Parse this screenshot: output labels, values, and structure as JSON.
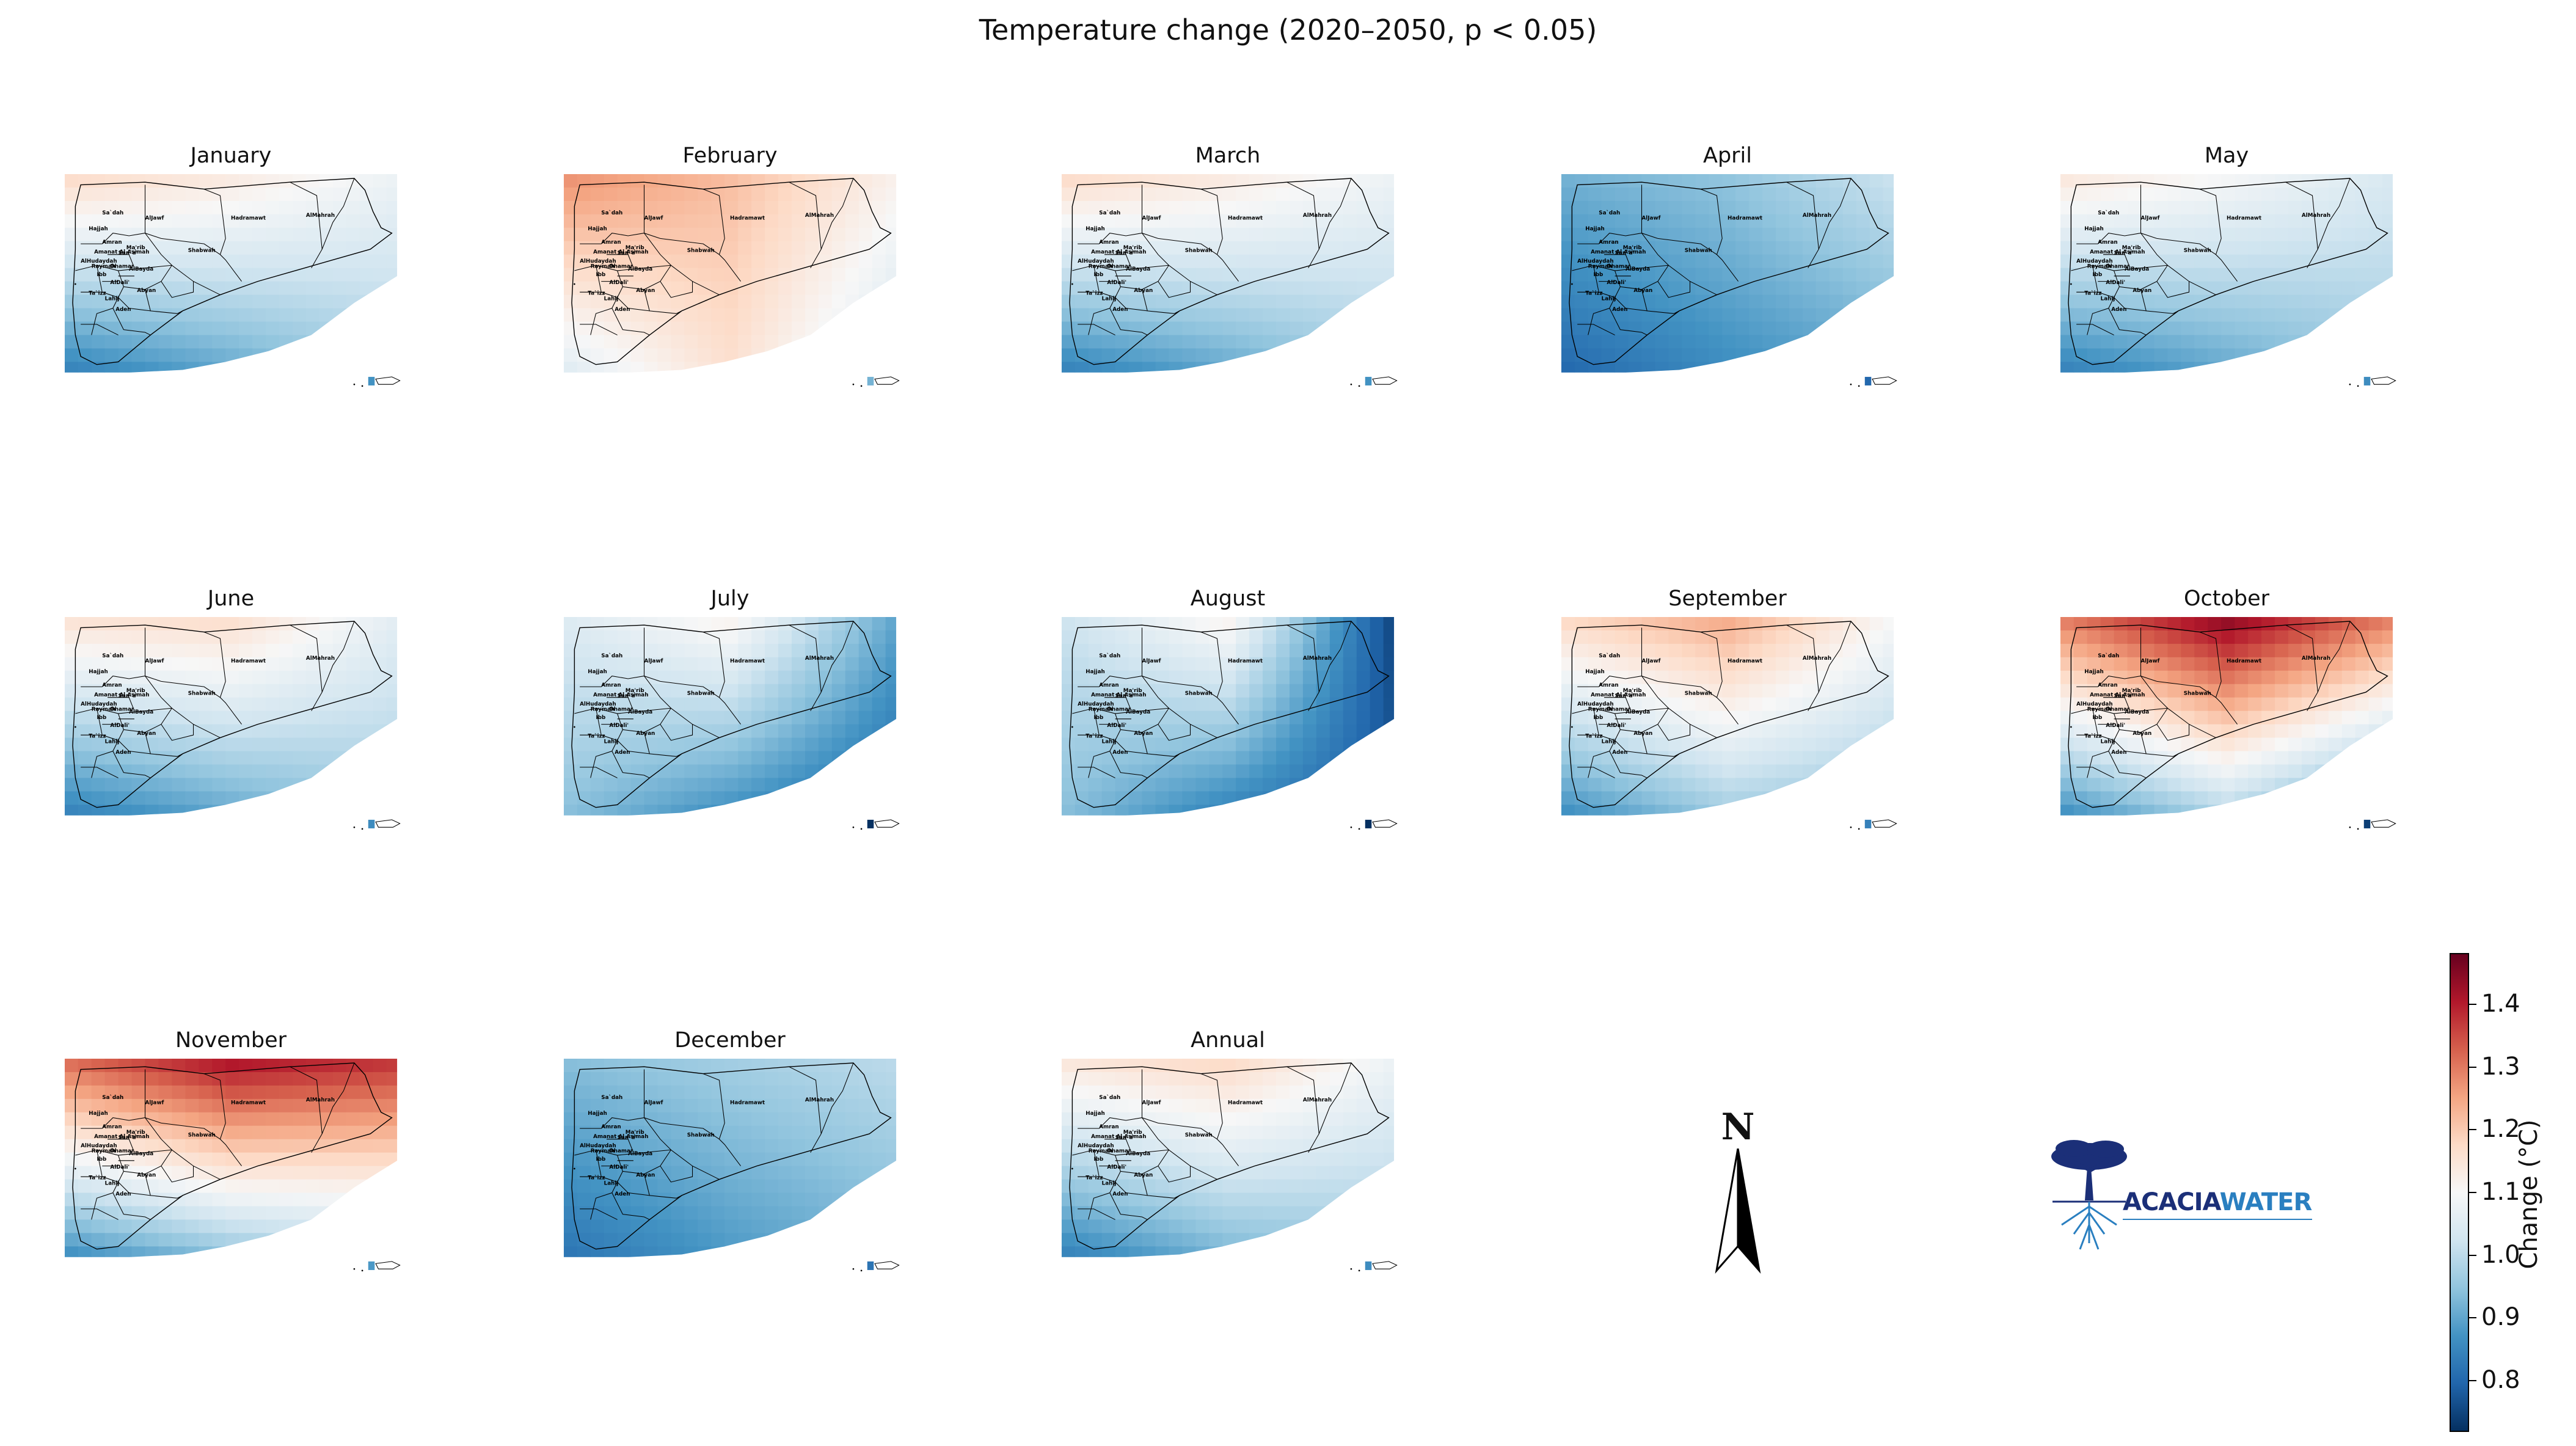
{
  "title": "Temperature change (2020–2050, p < 0.05)",
  "colorbar": {
    "label": "Change (°C)",
    "ticks": [
      "0.8",
      "0.9",
      "1.0",
      "1.1",
      "1.2",
      "1.3",
      "1.4"
    ],
    "range": [
      0.72,
      1.48
    ],
    "colormap": [
      "#053061",
      "#2166ac",
      "#4393c3",
      "#92c5de",
      "#d1e5f0",
      "#f7f7f7",
      "#fddbc7",
      "#f4a582",
      "#d6604d",
      "#b2182b",
      "#67001f"
    ]
  },
  "panels": [
    {
      "title": "January",
      "nw": 1.18,
      "n": 1.14,
      "ne": 1.08,
      "sw": 0.84,
      "s": 0.9,
      "se": 0.97
    },
    {
      "title": "February",
      "nw": 1.28,
      "n": 1.22,
      "ne": 1.12,
      "sw": 1.05,
      "s": 1.16,
      "se": 1.02
    },
    {
      "title": "March",
      "nw": 1.18,
      "n": 1.14,
      "ne": 1.08,
      "sw": 0.84,
      "s": 0.9,
      "se": 0.97
    },
    {
      "title": "April",
      "nw": 0.92,
      "n": 0.95,
      "ne": 1.02,
      "sw": 0.8,
      "s": 0.86,
      "se": 0.9
    },
    {
      "title": "May",
      "nw": 1.15,
      "n": 1.1,
      "ne": 1.04,
      "sw": 0.84,
      "s": 0.9,
      "se": 0.96
    },
    {
      "title": "June",
      "nw": 1.16,
      "n": 1.17,
      "ne": 1.06,
      "sw": 0.84,
      "s": 0.9,
      "se": 0.96
    },
    {
      "title": "July",
      "nw": 1.05,
      "n": 1.12,
      "ne": 0.9,
      "sw": 0.94,
      "s": 0.86,
      "se": 0.8
    },
    {
      "title": "August",
      "nw": 1.02,
      "n": 1.12,
      "ne": 0.75,
      "sw": 0.94,
      "s": 0.84,
      "se": 0.78
    },
    {
      "title": "September",
      "nw": 1.18,
      "n": 1.25,
      "ne": 1.1,
      "sw": 0.86,
      "s": 0.96,
      "se": 0.94
    },
    {
      "title": "October",
      "nw": 1.3,
      "n": 1.45,
      "ne": 1.3,
      "sw": 0.86,
      "s": 0.98,
      "se": 0.84
    },
    {
      "title": "November",
      "nw": 1.32,
      "n": 1.42,
      "ne": 1.38,
      "sw": 0.86,
      "s": 0.94,
      "se": 0.98
    },
    {
      "title": "December",
      "nw": 0.94,
      "n": 0.97,
      "ne": 1.0,
      "sw": 0.82,
      "s": 0.88,
      "se": 0.92
    },
    {
      "title": "Annual",
      "nw": 1.15,
      "n": 1.18,
      "ne": 1.08,
      "sw": 0.84,
      "s": 0.92,
      "se": 0.96
    }
  ],
  "regions": [
    {
      "name": "Sa`dah"
    },
    {
      "name": "AlJawf"
    },
    {
      "name": "Hadramawt"
    },
    {
      "name": "AlMahrah"
    },
    {
      "name": "Hajjah"
    },
    {
      "name": "Amran"
    },
    {
      "name": "Amanat Al Asimah"
    },
    {
      "name": "San`a'"
    },
    {
      "name": "Ma'rib"
    },
    {
      "name": "AlHudaydah"
    },
    {
      "name": "Raymah"
    },
    {
      "name": "Dhamar"
    },
    {
      "name": "Shabwah"
    },
    {
      "name": "Ibb"
    },
    {
      "name": "AlBayda"
    },
    {
      "name": "AlDali'"
    },
    {
      "name": "Ta`izz"
    },
    {
      "name": "Lahij"
    },
    {
      "name": "Abyan"
    },
    {
      "name": "Aden"
    }
  ],
  "north_arrow": {
    "letter": "N"
  },
  "logo": {
    "word1": "ACACIA",
    "word2": "WATER"
  }
}
